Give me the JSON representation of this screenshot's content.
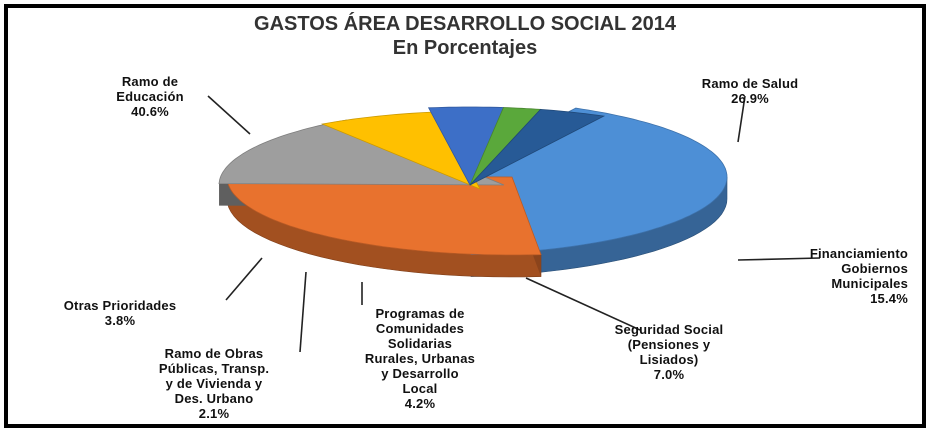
{
  "chart_data": {
    "type": "pie",
    "title": "GASTOS ÁREA DESARROLLO SOCIAL 2014",
    "subtitle": "En Porcentajes",
    "unit": "%",
    "slices": [
      {
        "label_lines": [
          "Ramo de",
          "Educación"
        ],
        "value": 40.6,
        "value_text": "40.6%",
        "color": "#4d8fd6"
      },
      {
        "label_lines": [
          "Ramo de Salud"
        ],
        "value": 26.9,
        "value_text": "26.9%",
        "color": "#e8722e"
      },
      {
        "label_lines": [
          "Financiamiento",
          "Gobiernos",
          "Municipales"
        ],
        "value": 15.4,
        "value_text": "15.4%",
        "color": "#9e9e9e"
      },
      {
        "label_lines": [
          "Seguridad Social",
          "(Pensiones y",
          "Lisiados)"
        ],
        "value": 7.0,
        "value_text": "7.0%",
        "color": "#ffc000"
      },
      {
        "label_lines": [
          "Programas de",
          "Comunidades",
          "Solidarias",
          "Rurales, Urbanas",
          "y Desarrollo",
          "Local"
        ],
        "value": 4.2,
        "value_text": "4.2%",
        "color": "#3d6fc7"
      },
      {
        "label_lines": [
          "Ramo de Obras",
          "Públicas, Transp.",
          "y de Vivienda y",
          "Des. Urbano"
        ],
        "value": 2.1,
        "value_text": "2.1%",
        "color": "#5aa83b"
      },
      {
        "label_lines": [
          "Otras Prioridades"
        ],
        "value": 3.8,
        "value_text": "3.8%",
        "color": "#275a96"
      }
    ],
    "legend": "none"
  }
}
